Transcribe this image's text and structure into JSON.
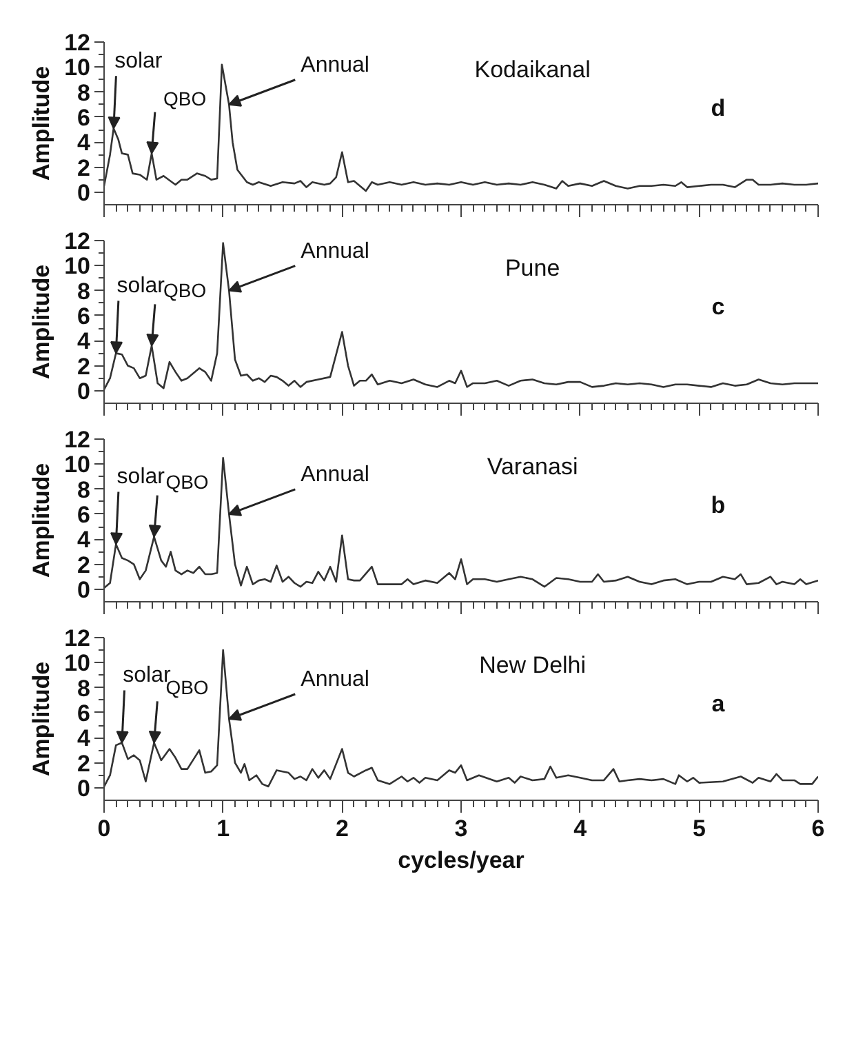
{
  "chart_data": [
    {
      "type": "line",
      "ylabel": "Amplitude",
      "xlim": [
        0,
        6
      ],
      "xticks": [
        0,
        1,
        2,
        3,
        4,
        5,
        6
      ],
      "ylim": [
        -1,
        12
      ],
      "yticks": [
        0,
        2,
        4,
        6,
        8,
        10,
        12
      ],
      "tick_labels": "y",
      "grid": false,
      "marker": "none",
      "line_style": "solid",
      "annotations": [
        "Kodaikanal",
        "d",
        {
          "text": "solar",
          "x": 0.08,
          "y": 5.1
        },
        {
          "text": "QBO",
          "x": 0.4,
          "y": 3.1
        },
        {
          "text": "Annual",
          "x": 1.05,
          "y": 7
        }
      ],
      "x": [
        0,
        0.05,
        0.08,
        0.12,
        0.15,
        0.2,
        0.24,
        0.3,
        0.36,
        0.4,
        0.44,
        0.5,
        0.6,
        0.65,
        0.7,
        0.78,
        0.85,
        0.9,
        0.95,
        0.99,
        1.05,
        1.08,
        1.12,
        1.2,
        1.25,
        1.3,
        1.4,
        1.5,
        1.6,
        1.65,
        1.7,
        1.75,
        1.85,
        1.9,
        1.95,
        2.0,
        2.05,
        2.1,
        2.15,
        2.2,
        2.25,
        2.3,
        2.4,
        2.5,
        2.6,
        2.7,
        2.8,
        2.9,
        3.0,
        3.1,
        3.2,
        3.3,
        3.4,
        3.5,
        3.6,
        3.7,
        3.8,
        3.85,
        3.9,
        4.0,
        4.1,
        4.2,
        4.3,
        4.4,
        4.5,
        4.6,
        4.7,
        4.8,
        4.85,
        4.9,
        5.0,
        5.1,
        5.2,
        5.3,
        5.4,
        5.45,
        5.5,
        5.6,
        5.7,
        5.8,
        5.9,
        6.0
      ],
      "series": [
        {
          "color": "#333333",
          "values": [
            0.5,
            3,
            5.1,
            4.2,
            3.1,
            3.0,
            1.5,
            1.4,
            1.0,
            3.1,
            1.0,
            1.3,
            0.6,
            1.0,
            1.0,
            1.5,
            1.3,
            1.0,
            1.1,
            10.2,
            7,
            4,
            1.8,
            0.8,
            0.6,
            0.8,
            0.5,
            0.8,
            0.7,
            0.9,
            0.4,
            0.8,
            0.6,
            0.7,
            1.2,
            3.2,
            0.8,
            0.9,
            0.5,
            0.1,
            0.8,
            0.6,
            0.8,
            0.6,
            0.8,
            0.6,
            0.7,
            0.6,
            0.8,
            0.6,
            0.8,
            0.6,
            0.7,
            0.6,
            0.8,
            0.6,
            0.3,
            0.9,
            0.5,
            0.7,
            0.5,
            0.9,
            0.5,
            0.3,
            0.5,
            0.5,
            0.6,
            0.5,
            0.8,
            0.4,
            0.5,
            0.6,
            0.6,
            0.4,
            1.0,
            1.0,
            0.6,
            0.6,
            0.7,
            0.6,
            0.6,
            0.7
          ]
        }
      ]
    },
    {
      "type": "line",
      "ylabel": "Amplitude",
      "xlim": [
        0,
        6
      ],
      "xticks": [
        0,
        1,
        2,
        3,
        4,
        5,
        6
      ],
      "ylim": [
        -1,
        12
      ],
      "yticks": [
        0,
        2,
        4,
        6,
        8,
        10,
        12
      ],
      "tick_labels": "y",
      "grid": false,
      "marker": "none",
      "line_style": "solid",
      "annotations": [
        "Pune",
        "c",
        {
          "text": "solar",
          "x": 0.1,
          "y": 3.0
        },
        {
          "text": "QBO",
          "x": 0.4,
          "y": 3.6
        },
        {
          "text": "Annual",
          "x": 1.05,
          "y": 8
        }
      ],
      "x": [
        0,
        0.05,
        0.1,
        0.15,
        0.2,
        0.25,
        0.3,
        0.35,
        0.4,
        0.45,
        0.5,
        0.55,
        0.6,
        0.65,
        0.7,
        0.8,
        0.85,
        0.9,
        0.95,
        1.0,
        1.05,
        1.1,
        1.15,
        1.2,
        1.25,
        1.3,
        1.35,
        1.4,
        1.45,
        1.5,
        1.55,
        1.6,
        1.65,
        1.7,
        1.8,
        1.9,
        2.0,
        2.05,
        2.1,
        2.15,
        2.2,
        2.25,
        2.3,
        2.4,
        2.5,
        2.6,
        2.7,
        2.8,
        2.9,
        2.95,
        3.0,
        3.05,
        3.1,
        3.2,
        3.3,
        3.4,
        3.5,
        3.6,
        3.7,
        3.8,
        3.9,
        4.0,
        4.1,
        4.2,
        4.3,
        4.4,
        4.5,
        4.6,
        4.7,
        4.8,
        4.9,
        5.0,
        5.1,
        5.2,
        5.3,
        5.4,
        5.5,
        5.6,
        5.7,
        5.8,
        5.9,
        6.0
      ],
      "series": [
        {
          "color": "#333333",
          "values": [
            0.1,
            1,
            3.0,
            2.9,
            2.0,
            1.8,
            1.0,
            1.2,
            3.6,
            0.6,
            0.2,
            2.3,
            1.5,
            0.8,
            1.0,
            1.8,
            1.5,
            0.8,
            3,
            11.8,
            8,
            2.5,
            1.2,
            1.3,
            0.8,
            1.0,
            0.7,
            1.2,
            1.1,
            0.8,
            0.4,
            0.8,
            0.3,
            0.7,
            0.9,
            1.1,
            4.7,
            2,
            0.4,
            0.8,
            0.8,
            1.3,
            0.5,
            0.8,
            0.6,
            0.9,
            0.5,
            0.3,
            0.8,
            0.6,
            1.6,
            0.3,
            0.6,
            0.6,
            0.8,
            0.4,
            0.8,
            0.9,
            0.6,
            0.5,
            0.7,
            0.7,
            0.3,
            0.4,
            0.6,
            0.5,
            0.6,
            0.5,
            0.3,
            0.5,
            0.5,
            0.4,
            0.3,
            0.6,
            0.4,
            0.5,
            0.9,
            0.6,
            0.5,
            0.6,
            0.6,
            0.6
          ]
        }
      ]
    },
    {
      "type": "line",
      "ylabel": "Amplitude",
      "xlim": [
        0,
        6
      ],
      "xticks": [
        0,
        1,
        2,
        3,
        4,
        5,
        6
      ],
      "ylim": [
        -1,
        12
      ],
      "yticks": [
        0,
        2,
        4,
        6,
        8,
        10,
        12
      ],
      "tick_labels": "y",
      "grid": false,
      "marker": "none",
      "line_style": "solid",
      "annotations": [
        "Varanasi",
        "b",
        {
          "text": "solar",
          "x": 0.1,
          "y": 3.6
        },
        {
          "text": "QBO",
          "x": 0.42,
          "y": 4.2
        },
        {
          "text": "Annual",
          "x": 1.05,
          "y": 6
        }
      ],
      "x": [
        0,
        0.05,
        0.1,
        0.15,
        0.2,
        0.25,
        0.3,
        0.35,
        0.42,
        0.48,
        0.52,
        0.56,
        0.6,
        0.65,
        0.7,
        0.75,
        0.8,
        0.85,
        0.9,
        0.95,
        1.0,
        1.05,
        1.1,
        1.15,
        1.2,
        1.25,
        1.3,
        1.35,
        1.4,
        1.45,
        1.5,
        1.55,
        1.6,
        1.65,
        1.7,
        1.75,
        1.8,
        1.85,
        1.9,
        1.95,
        2.0,
        2.05,
        2.1,
        2.15,
        2.25,
        2.3,
        2.4,
        2.5,
        2.55,
        2.6,
        2.7,
        2.8,
        2.9,
        2.95,
        3.0,
        3.05,
        3.1,
        3.2,
        3.3,
        3.4,
        3.5,
        3.6,
        3.7,
        3.8,
        3.9,
        4.0,
        4.1,
        4.15,
        4.2,
        4.3,
        4.4,
        4.5,
        4.6,
        4.7,
        4.8,
        4.9,
        5.0,
        5.1,
        5.2,
        5.3,
        5.35,
        5.4,
        5.5,
        5.6,
        5.65,
        5.7,
        5.8,
        5.85,
        5.9,
        6.0
      ],
      "series": [
        {
          "color": "#333333",
          "values": [
            0.1,
            0.5,
            3.6,
            2.5,
            2.3,
            2.0,
            0.8,
            1.5,
            4.2,
            2.3,
            1.8,
            3.0,
            1.5,
            1.2,
            1.5,
            1.3,
            1.8,
            1.2,
            1.2,
            1.3,
            10.5,
            6,
            2,
            0.3,
            1.8,
            0.4,
            0.7,
            0.8,
            0.6,
            1.9,
            0.6,
            1.0,
            0.5,
            0.2,
            0.6,
            0.5,
            1.4,
            0.7,
            1.8,
            0.6,
            4.3,
            0.8,
            0.7,
            0.7,
            1.8,
            0.4,
            0.4,
            0.4,
            0.8,
            0.4,
            0.7,
            0.5,
            1.3,
            0.8,
            2.4,
            0.4,
            0.8,
            0.8,
            0.6,
            0.8,
            1.0,
            0.8,
            0.2,
            0.9,
            0.8,
            0.6,
            0.6,
            1.2,
            0.6,
            0.7,
            1.0,
            0.6,
            0.4,
            0.7,
            0.8,
            0.4,
            0.6,
            0.6,
            1.0,
            0.8,
            1.2,
            0.4,
            0.5,
            1.0,
            0.4,
            0.6,
            0.4,
            0.8,
            0.4,
            0.7
          ]
        }
      ]
    },
    {
      "type": "line",
      "xlabel": "cycles/year",
      "ylabel": "Amplitude",
      "xlim": [
        0,
        6
      ],
      "xticks": [
        0,
        1,
        2,
        3,
        4,
        5,
        6
      ],
      "ylim": [
        -1,
        12
      ],
      "yticks": [
        0,
        2,
        4,
        6,
        8,
        10,
        12
      ],
      "grid": false,
      "marker": "none",
      "line_style": "solid",
      "annotations": [
        "New Delhi",
        "a",
        {
          "text": "solar",
          "x": 0.15,
          "y": 3.6
        },
        {
          "text": "QBO",
          "x": 0.42,
          "y": 3.6
        },
        {
          "text": "Annual",
          "x": 1.05,
          "y": 5.5
        }
      ],
      "x": [
        0,
        0.05,
        0.1,
        0.15,
        0.2,
        0.25,
        0.3,
        0.35,
        0.42,
        0.48,
        0.55,
        0.6,
        0.65,
        0.7,
        0.8,
        0.85,
        0.9,
        0.95,
        1.0,
        1.05,
        1.1,
        1.15,
        1.18,
        1.22,
        1.28,
        1.33,
        1.38,
        1.45,
        1.55,
        1.6,
        1.65,
        1.7,
        1.75,
        1.8,
        1.85,
        1.9,
        2.0,
        2.05,
        2.1,
        2.2,
        2.25,
        2.3,
        2.4,
        2.5,
        2.55,
        2.6,
        2.65,
        2.7,
        2.8,
        2.9,
        2.95,
        3.0,
        3.05,
        3.15,
        3.3,
        3.4,
        3.45,
        3.5,
        3.6,
        3.7,
        3.75,
        3.8,
        3.9,
        4.0,
        4.1,
        4.2,
        4.28,
        4.33,
        4.4,
        4.5,
        4.6,
        4.7,
        4.8,
        4.83,
        4.9,
        4.95,
        5.0,
        5.2,
        5.35,
        5.45,
        5.5,
        5.6,
        5.65,
        5.7,
        5.8,
        5.85,
        5.95,
        6.0
      ],
      "series": [
        {
          "color": "#333333",
          "values": [
            0.1,
            1,
            3.4,
            3.6,
            2.3,
            2.6,
            2.2,
            0.5,
            3.6,
            2.2,
            3.1,
            2.4,
            1.5,
            1.5,
            3.0,
            1.2,
            1.3,
            1.8,
            11,
            5.5,
            2,
            1.2,
            1.9,
            0.6,
            1.0,
            0.3,
            0.1,
            1.4,
            1.2,
            0.7,
            0.9,
            0.6,
            1.5,
            0.8,
            1.4,
            0.7,
            3.1,
            1.2,
            0.9,
            1.4,
            1.6,
            0.6,
            0.3,
            0.9,
            0.5,
            0.8,
            0.4,
            0.8,
            0.6,
            1.4,
            1.2,
            1.8,
            0.6,
            1.0,
            0.5,
            0.8,
            0.4,
            0.9,
            0.6,
            0.7,
            1.7,
            0.8,
            1.0,
            0.8,
            0.6,
            0.6,
            1.5,
            0.5,
            0.6,
            0.7,
            0.6,
            0.7,
            0.3,
            1.0,
            0.5,
            0.8,
            0.4,
            0.5,
            0.9,
            0.4,
            0.8,
            0.5,
            1.1,
            0.6,
            0.6,
            0.3,
            0.3,
            0.9
          ]
        }
      ]
    }
  ]
}
